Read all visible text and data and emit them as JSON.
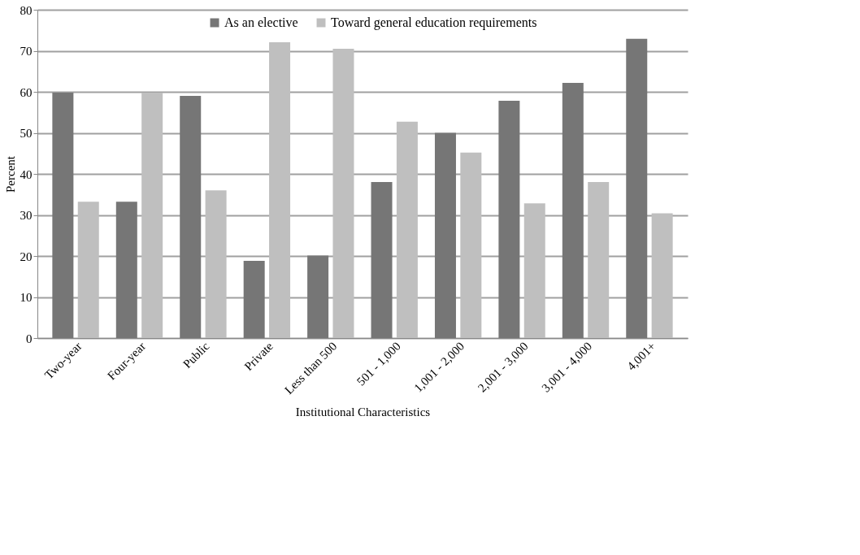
{
  "chart_data": {
    "type": "bar",
    "xlabel": "Institutional Characteristics",
    "ylabel": "Percent",
    "categories": [
      "Two-year",
      "Four-year",
      "Public",
      "Private",
      "Less than 500",
      "501 - 1,000",
      "1,001 - 2,000",
      "2,001 - 3,000",
      "3,001 - 4,000",
      "4,001+"
    ],
    "series": [
      {
        "name": "As an elective",
        "color": "#767676",
        "values": [
          59.8,
          33.2,
          59.0,
          18.8,
          20.1,
          38.0,
          50.0,
          57.8,
          62.2,
          72.9
        ]
      },
      {
        "name": "Toward general education requirements",
        "color": "#bfbfbf",
        "values": [
          33.2,
          59.8,
          36.0,
          72.1,
          70.5,
          52.7,
          45.2,
          32.8,
          38.0,
          30.4
        ]
      }
    ],
    "ylim": [
      0,
      80
    ],
    "yticks": [
      0,
      10,
      20,
      30,
      40,
      50,
      60,
      70,
      80
    ],
    "grid": "y",
    "legend": "top"
  }
}
